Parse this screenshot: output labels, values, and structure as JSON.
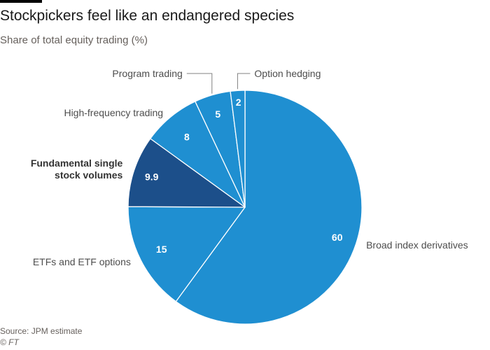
{
  "header": {
    "title": "Stockpickers feel like an endangered species",
    "subtitle": "Share of total equity trading (%)"
  },
  "footer": {
    "source": "Source: JPM estimate",
    "credit": "© FT"
  },
  "colors": {
    "main_slice": "#1f8fd1",
    "highlight_slice": "#1c4f8a",
    "slice_border": "#ffffff",
    "label_text": "#4d4d4d",
    "highlight_label_text": "#333333",
    "leader_line": "#808080"
  },
  "chart_data": {
    "type": "pie",
    "title": "Stockpickers feel like an endangered species",
    "subtitle": "Share of total equity trading (%)",
    "slices": [
      {
        "label": "Broad index derivatives",
        "value": 60,
        "value_label": "60",
        "highlight": false
      },
      {
        "label": "ETFs and ETF options",
        "value": 15,
        "value_label": "15",
        "highlight": false
      },
      {
        "label": "Fundamental single stock volumes",
        "label_lines": [
          "Fundamental single",
          "stock volumes"
        ],
        "value": 9.9,
        "value_label": "9.9",
        "highlight": true
      },
      {
        "label": "High-frequency trading",
        "value": 8,
        "value_label": "8",
        "highlight": false
      },
      {
        "label": "Program trading",
        "value": 5,
        "value_label": "5",
        "highlight": false
      },
      {
        "label": "Option hedging",
        "value": 2,
        "value_label": "2",
        "highlight": false
      }
    ]
  }
}
